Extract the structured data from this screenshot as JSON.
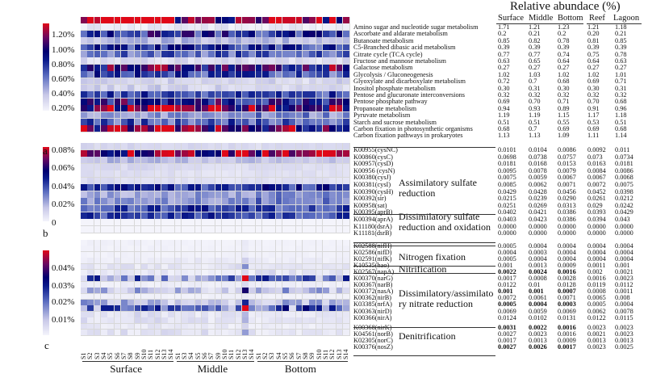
{
  "chart_data": {
    "type": "heatmap",
    "title": "Relative abundace (%)",
    "table_columns": [
      "Surface",
      "Middle",
      "Bottom",
      "Reef",
      "Lagoon"
    ],
    "sample_groups": [
      {
        "name": "Surface",
        "samples": [
          "S1",
          "S2",
          "S3",
          "S4",
          "S5",
          "S6",
          "S7",
          "S8",
          "S9",
          "S10",
          "S11",
          "S12",
          "S13",
          "S14"
        ]
      },
      {
        "name": "Middle",
        "samples": [
          "S1",
          "S3",
          "S4",
          "S5",
          "S6",
          "S7",
          "S9",
          "S10",
          "S11",
          "S12",
          "S13",
          "S14"
        ]
      },
      {
        "name": "Bottom",
        "samples": [
          "S1",
          "S2",
          "S3",
          "S4",
          "S5",
          "S6",
          "S7",
          "S8",
          "S9",
          "S10",
          "S11",
          "S12",
          "S13",
          "S14"
        ]
      }
    ],
    "colors": {
      "low": "#f4f4fb",
      "mid_low": "#5a6cc0",
      "mid": "#000070",
      "mid_high": "#6a0860",
      "high": "#e00818"
    },
    "panels": [
      {
        "letter": "a",
        "colorbar_ticks": [
          "1.20%",
          "1.00%",
          "0.80%",
          "0.60%",
          "0.40%",
          "0.20%"
        ],
        "range": [
          0.15,
          1.35
        ],
        "rows": [
          {
            "label": "Amino sugar and nucleotide sugar metabolism",
            "values": [
              "1.71",
              "1.21",
              "1.23",
              "1.21",
              "1.18"
            ]
          },
          {
            "label": "Ascorbate and aldarate metabolism",
            "values": [
              "0.2",
              "0.21",
              "0.2",
              "0.20",
              "0.21"
            ]
          },
          {
            "label": "Butanoate metabolism",
            "values": [
              "0.85",
              "0.82",
              "0.78",
              "0.81",
              "0.85"
            ]
          },
          {
            "label": "C5-Branched dibasic acid metabolism",
            "values": [
              "0.39",
              "0.39",
              "0.39",
              "0.39",
              "0.39"
            ]
          },
          {
            "label": "Citrate cycle (TCA cycle)",
            "values": [
              "0.77",
              "0.77",
              "0.74",
              "0.75",
              "0.78"
            ]
          },
          {
            "label": "Fructose and mannose metabolism",
            "values": [
              "0.63",
              "0.65",
              "0.64",
              "0.64",
              "0.63"
            ]
          },
          {
            "label": "Galactose metabolism",
            "values": [
              "0.27",
              "0.27",
              "0.27",
              "0.27",
              "0.27"
            ]
          },
          {
            "label": "Glycolysis / Gluconeogenesis",
            "values": [
              "1.02",
              "1.03",
              "1.02",
              "1.02",
              "1.01"
            ]
          },
          {
            "label": "Glyoxylate and dicarboxylate metabolism",
            "values": [
              "0.72",
              "0.7",
              "0.68",
              "0.69",
              "0.71"
            ]
          },
          {
            "label": "Inositol phosphate metabolism",
            "values": [
              "0.30",
              "0.31",
              "0.30",
              "0.30",
              "0.31"
            ]
          },
          {
            "label": "Pentose and glucuronate interconversions",
            "values": [
              "0.32",
              "0.32",
              "0.32",
              "0.32",
              "0.32"
            ]
          },
          {
            "label": "Pentose phosphate pathway",
            "values": [
              "0.69",
              "0.70",
              "0.71",
              "0.70",
              "0.68"
            ]
          },
          {
            "label": "Propanoate metabolism",
            "values": [
              "0.94",
              "0.93",
              "0.89",
              "0.91",
              "0.96"
            ]
          },
          {
            "label": "Pyruvate metabolism",
            "values": [
              "1.19",
              "1.19",
              "1.15",
              "1.17",
              "1.18"
            ]
          },
          {
            "label": "Starch and sucrose metabolism",
            "values": [
              "0.51",
              "0.51",
              "0.55",
              "0.53",
              "0.51"
            ]
          },
          {
            "label": "Carbon fixation in photosynthetic organisms",
            "values": [
              "0.68",
              "0.7",
              "0.69",
              "0.69",
              "0.68"
            ]
          },
          {
            "label": "Carbon fixation pathways in prokaryotes",
            "values": [
              "1.13",
              "1.13",
              "1.09",
              "1.11",
              "1.14"
            ]
          }
        ]
      },
      {
        "letter": "b",
        "colorbar_ticks": [
          "0.08%",
          "0.06%",
          "0.04%",
          "0.02%",
          "0"
        ],
        "range": [
          0,
          0.085
        ],
        "groups": [
          "Assimilatory sulfate reduction",
          "Dissimilatory sulfate reduction and oxidation"
        ],
        "rows": [
          {
            "label": "K00955(cysNC)",
            "values": [
              "0.0101",
              "0.0104",
              "0.0086",
              "0.0092",
              "0.011"
            ]
          },
          {
            "label": "K00860(cysC)",
            "values": [
              "0.0698",
              "0.0738",
              "0.0757",
              "0.073",
              "0.0734"
            ]
          },
          {
            "label": "K00957(cysD)",
            "values": [
              "0.0181",
              "0.0168",
              "0.0153",
              "0.0163",
              "0.0181"
            ]
          },
          {
            "label": "K00956 (cysN)",
            "values": [
              "0.0095",
              "0.0078",
              "0.0079",
              "0.0084",
              "0.0086"
            ]
          },
          {
            "label": "K00380(cysJ)",
            "values": [
              "0.0075",
              "0.0059",
              "0.0067",
              "0.0067",
              "0.0068"
            ]
          },
          {
            "label": "K00381(cysI)",
            "values": [
              "0.0085",
              "0.0062",
              "0.0071",
              "0.0072",
              "0.0075"
            ]
          },
          {
            "label": "K00390(cysH)",
            "values": [
              "0.0429",
              "0.0428",
              "0.0456",
              "0.0452",
              "0.0398"
            ]
          },
          {
            "label": "K00392(sir)",
            "values": [
              "0.0215",
              "0.0239",
              "0.0290",
              "0.0261",
              "0.0212"
            ]
          },
          {
            "label": "K00958(sat)",
            "values": [
              "0.0251",
              "0.0269",
              "0.0313",
              "0.029",
              "0.0242"
            ]
          },
          {
            "label": "K00395(aprB)",
            "values": [
              "0.0402",
              "0.0421",
              "0.0386",
              "0.0393",
              "0.0429"
            ]
          },
          {
            "label": "K00394(aprA)",
            "values": [
              "0.0403",
              "0.0423",
              "0.0386",
              "0.0394",
              "0.043"
            ]
          },
          {
            "label": "K11180(dsrA)",
            "values": [
              "0.0000",
              "0.0000",
              "0.0000",
              "0.0000",
              "0.0000"
            ]
          },
          {
            "label": "K11181(dsrB)",
            "values": [
              "0.0000",
              "0.0000",
              "0.0000",
              "0.0000",
              "0.0000"
            ]
          }
        ]
      },
      {
        "letter": "c",
        "colorbar_ticks": [
          "0.04%",
          "0.03%",
          "0.02%",
          "0.01%"
        ],
        "range": [
          0,
          0.048
        ],
        "groups": [
          "Nitrogen fixation",
          "Nitrification",
          "Dissimilatory/assimilatory nitrate reduction",
          "Denitrification"
        ],
        "rows": [
          {
            "label": "K02588(nifH)",
            "values": [
              "0.0005",
              "0.0004",
              "0.0004",
              "0.0004",
              "0.0004"
            ]
          },
          {
            "label": "K02586(nifD)",
            "values": [
              "0.0004",
              "0.0003",
              "0.0004",
              "0.0004",
              "0.0004"
            ]
          },
          {
            "label": "K02591(nifK)",
            "values": [
              "0.0005",
              "0.0004",
              "0.0004",
              "0.0004",
              "0.0004"
            ]
          },
          {
            "label": "K10535(hao)",
            "values": [
              "0.001",
              "0.0013",
              "0.0009",
              "0.0011",
              "0.001"
            ]
          },
          {
            "label": "K02567(napA)",
            "values": [
              "0.0022",
              "0.0024",
              "0.0016",
              "0.002",
              "0.0021"
            ],
            "bold": 3
          },
          {
            "label": "K00370(narG)",
            "values": [
              "0.0017",
              "0.0008",
              "0.0028",
              "0.0016",
              "0.0023"
            ]
          },
          {
            "label": "K00367(narB)",
            "values": [
              "0.0122",
              "0.01",
              "0.0128",
              "0.0119",
              "0.0112"
            ]
          },
          {
            "label": "K00372(nasA)",
            "values": [
              "0.001",
              "0.001",
              "0.0007",
              "0.0008",
              "0.0011"
            ],
            "bold": 3
          },
          {
            "label": "K00362(nirB)",
            "values": [
              "0.0072",
              "0.0061",
              "0.0071",
              "0.0065",
              "0.008"
            ]
          },
          {
            "label": "K03385(nrfA)",
            "values": [
              "0.0005",
              "0.0004",
              "0.0003",
              "0.0005",
              "0.0004"
            ],
            "bold": 3
          },
          {
            "label": "K00363(nirD)",
            "values": [
              "0.0069",
              "0.0059",
              "0.0069",
              "0.0062",
              "0.0078"
            ]
          },
          {
            "label": "K00366(nirA)",
            "values": [
              "0.0124",
              "0.0102",
              "0.0131",
              "0.0122",
              "0.0115"
            ]
          },
          {
            "label": "K00368(nirK)",
            "values": [
              "0.0031",
              "0.0022",
              "0.0016",
              "0.0023",
              "0.0023"
            ],
            "bold": 3
          },
          {
            "label": "K04561(norB)",
            "values": [
              "0.0027",
              "0.0023",
              "0.0016",
              "0.0021",
              "0.0023"
            ]
          },
          {
            "label": "K02305(norC)",
            "values": [
              "0.0017",
              "0.0013",
              "0.0009",
              "0.0013",
              "0.0013"
            ]
          },
          {
            "label": "K00376(nosZ)",
            "values": [
              "0.0027",
              "0.0026",
              "0.0017",
              "0.0023",
              "0.0025"
            ],
            "bold": 3
          }
        ]
      }
    ]
  }
}
